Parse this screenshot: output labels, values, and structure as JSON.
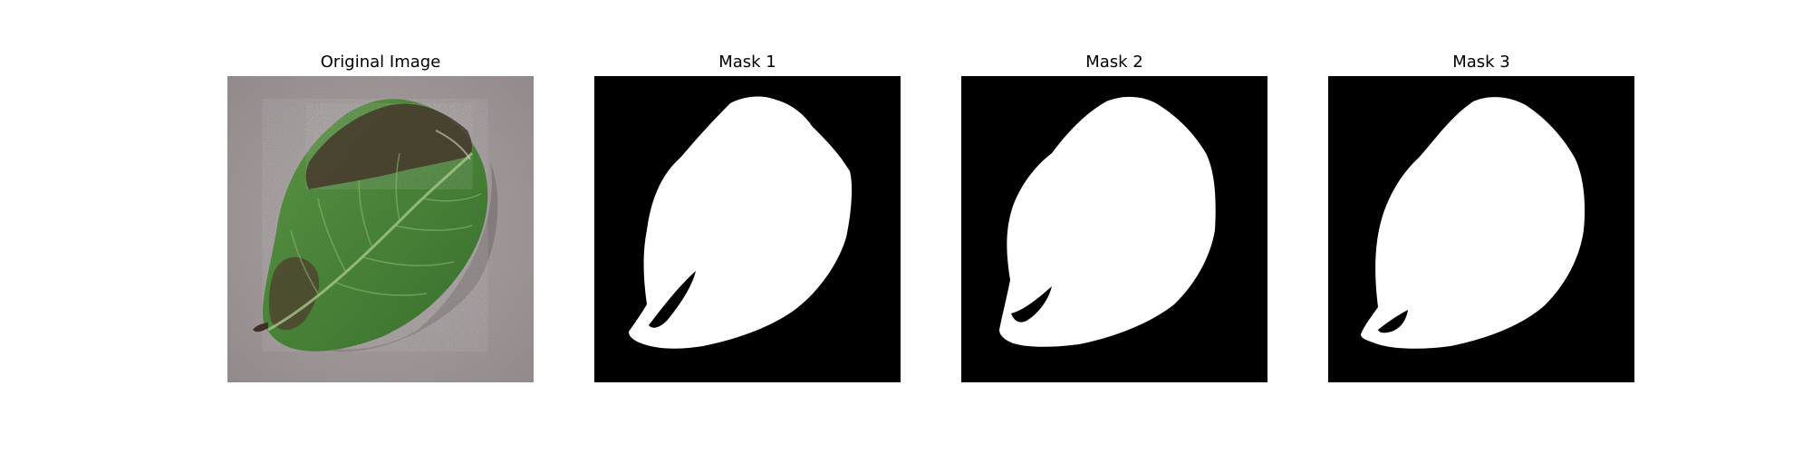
{
  "figure": {
    "panels": [
      {
        "title": "Original Image",
        "kind": "photo",
        "subject": "leaf-photo"
      },
      {
        "title": "Mask 1",
        "kind": "mask"
      },
      {
        "title": "Mask 2",
        "kind": "mask"
      },
      {
        "title": "Mask 3",
        "kind": "mask"
      }
    ]
  },
  "colors": {
    "background": "#ffffff",
    "mask_bg": "#000000",
    "mask_fg": "#ffffff",
    "photo_bg": "#a79e9e",
    "leaf_green": "#4f8a3c",
    "leaf_dark": "#3e3328"
  }
}
